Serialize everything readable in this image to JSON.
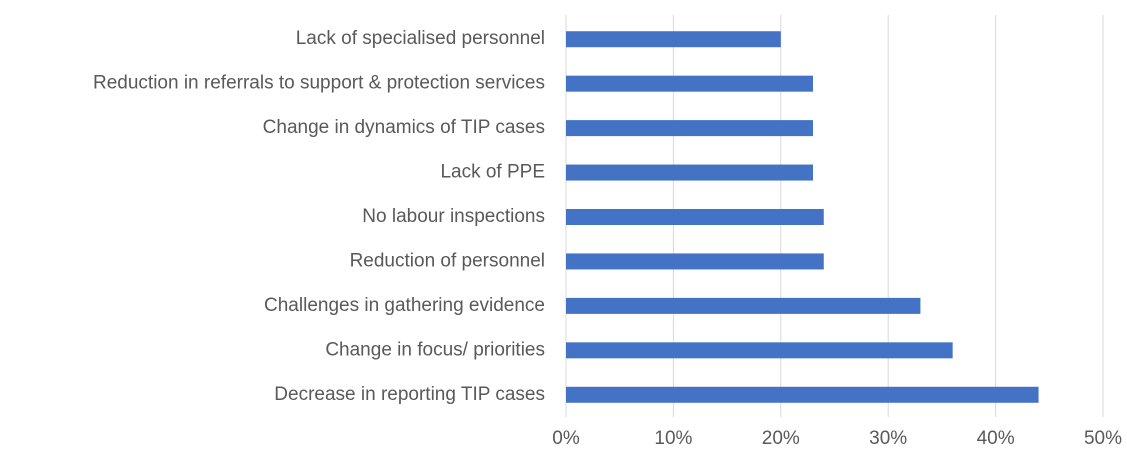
{
  "chart_data": {
    "type": "hbar",
    "categories": [
      "Lack of specialised personnel",
      "Reduction in referrals to support & protection services",
      "Change in dynamics of TIP cases",
      "Lack of PPE",
      "No labour inspections",
      "Reduction of personnel",
      "Challenges in gathering evidence",
      "Change in focus/ priorities",
      "Decrease in reporting TIP cases"
    ],
    "values": [
      20,
      23,
      23,
      23,
      24,
      24,
      33,
      36,
      44
    ],
    "color": "#4472c4",
    "xlim": [
      0,
      50
    ],
    "xticks": [
      {
        "value": 0,
        "label": "0%"
      },
      {
        "value": 10,
        "label": "10%"
      },
      {
        "value": 20,
        "label": "20%"
      },
      {
        "value": 30,
        "label": "30%"
      },
      {
        "value": 40,
        "label": "40%"
      },
      {
        "value": 50,
        "label": "50%"
      }
    ],
    "grid": true
  }
}
